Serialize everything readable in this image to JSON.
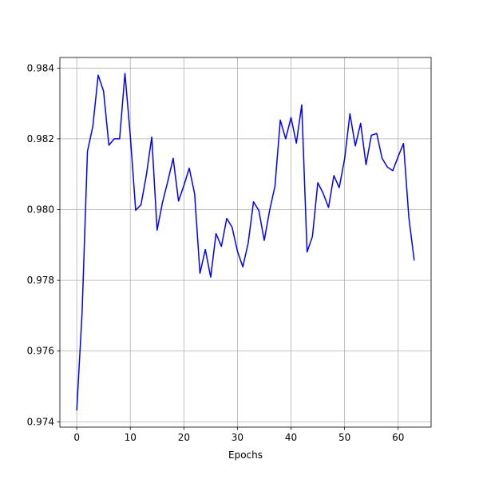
{
  "chart_data": {
    "type": "line",
    "xlabel": "Epochs",
    "ylabel": "",
    "title": "",
    "xlim": [
      -3.15,
      66.15
    ],
    "ylim": [
      0.97385,
      0.9843
    ],
    "xticks": [
      0,
      10,
      20,
      30,
      40,
      50,
      60
    ],
    "yticks": [
      0.974,
      0.976,
      0.978,
      0.98,
      0.982,
      0.984
    ],
    "ytick_labels": [
      "0.974",
      "0.976",
      "0.978",
      "0.980",
      "0.982",
      "0.984"
    ],
    "grid": true,
    "series": [
      {
        "color": "#0000ff",
        "x": [
          0,
          1,
          2,
          3,
          4,
          5,
          6,
          7,
          8,
          9,
          10,
          11,
          12,
          13,
          14,
          15,
          16,
          17,
          18,
          19,
          20,
          21,
          22,
          23,
          24,
          25,
          26,
          27,
          28,
          29,
          30,
          31,
          32,
          33,
          34,
          35,
          36,
          37,
          38,
          39,
          40,
          41,
          42,
          43,
          44,
          45,
          46,
          47,
          48,
          49,
          50,
          51,
          52,
          53,
          54,
          55,
          56,
          57,
          58,
          59,
          60,
          61,
          62,
          63
        ],
        "values": [
          0.97432,
          0.9771,
          0.98165,
          0.98235,
          0.9838,
          0.98335,
          0.98182,
          0.982,
          0.982,
          0.98385,
          0.98208,
          0.97998,
          0.98014,
          0.98098,
          0.98205,
          0.97942,
          0.9802,
          0.9808,
          0.98145,
          0.98024,
          0.98068,
          0.98117,
          0.98045,
          0.9782,
          0.97887,
          0.97809,
          0.97932,
          0.97896,
          0.97975,
          0.9795,
          0.97882,
          0.97838,
          0.97905,
          0.98022,
          0.97997,
          0.97913,
          0.97997,
          0.98066,
          0.98253,
          0.982,
          0.9826,
          0.98188,
          0.98296,
          0.9788,
          0.97924,
          0.98076,
          0.98046,
          0.98006,
          0.98096,
          0.98062,
          0.98143,
          0.98271,
          0.9818,
          0.98244,
          0.98127,
          0.9821,
          0.98215,
          0.98145,
          0.9812,
          0.9811,
          0.9815,
          0.98187,
          0.97977,
          0.97856
        ]
      }
    ]
  }
}
